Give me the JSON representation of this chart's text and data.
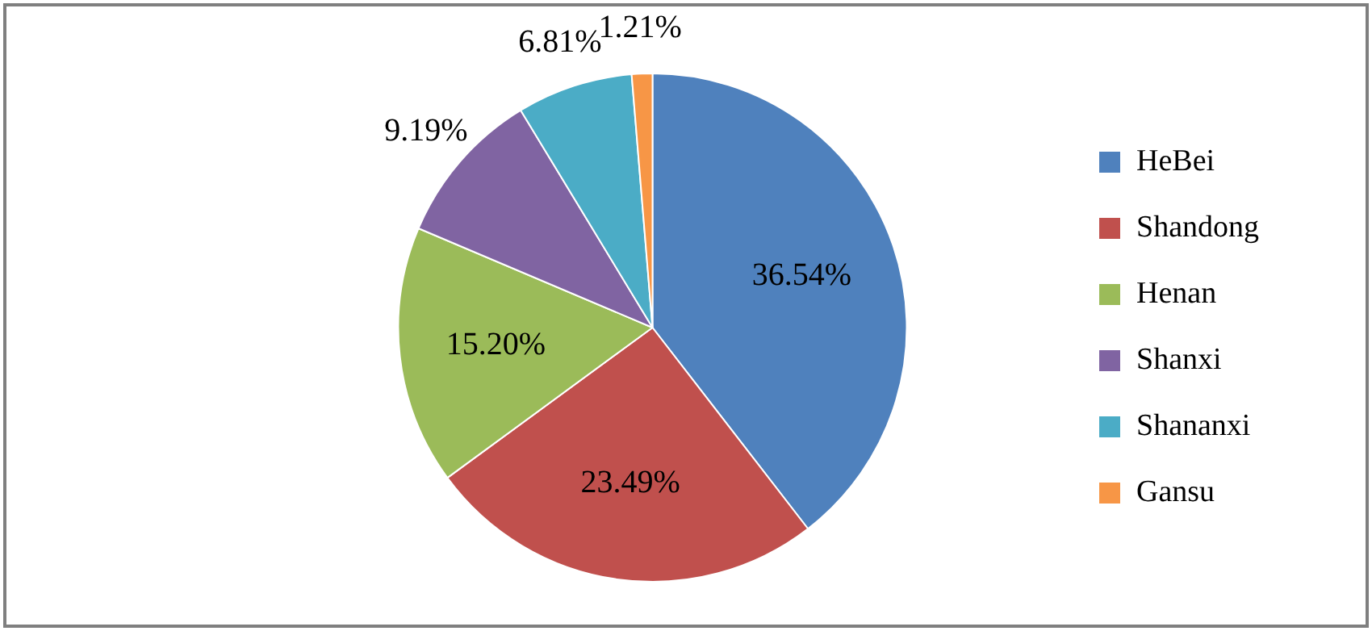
{
  "chart_data": {
    "type": "pie",
    "categories": [
      "HeBei",
      "Shandong",
      "Henan",
      "Shanxi",
      "Shananxi",
      "Gansu"
    ],
    "values": [
      36.54,
      23.49,
      15.2,
      9.19,
      6.81,
      1.21
    ],
    "colors": [
      "#4f81bd",
      "#c0504d",
      "#9bbb59",
      "#8064a2",
      "#4bacc6",
      "#f79646"
    ],
    "value_labels": [
      "36.54%",
      "23.49%",
      "15.20%",
      "9.19%",
      "6.81%",
      "1.21%"
    ],
    "legend": "right"
  }
}
